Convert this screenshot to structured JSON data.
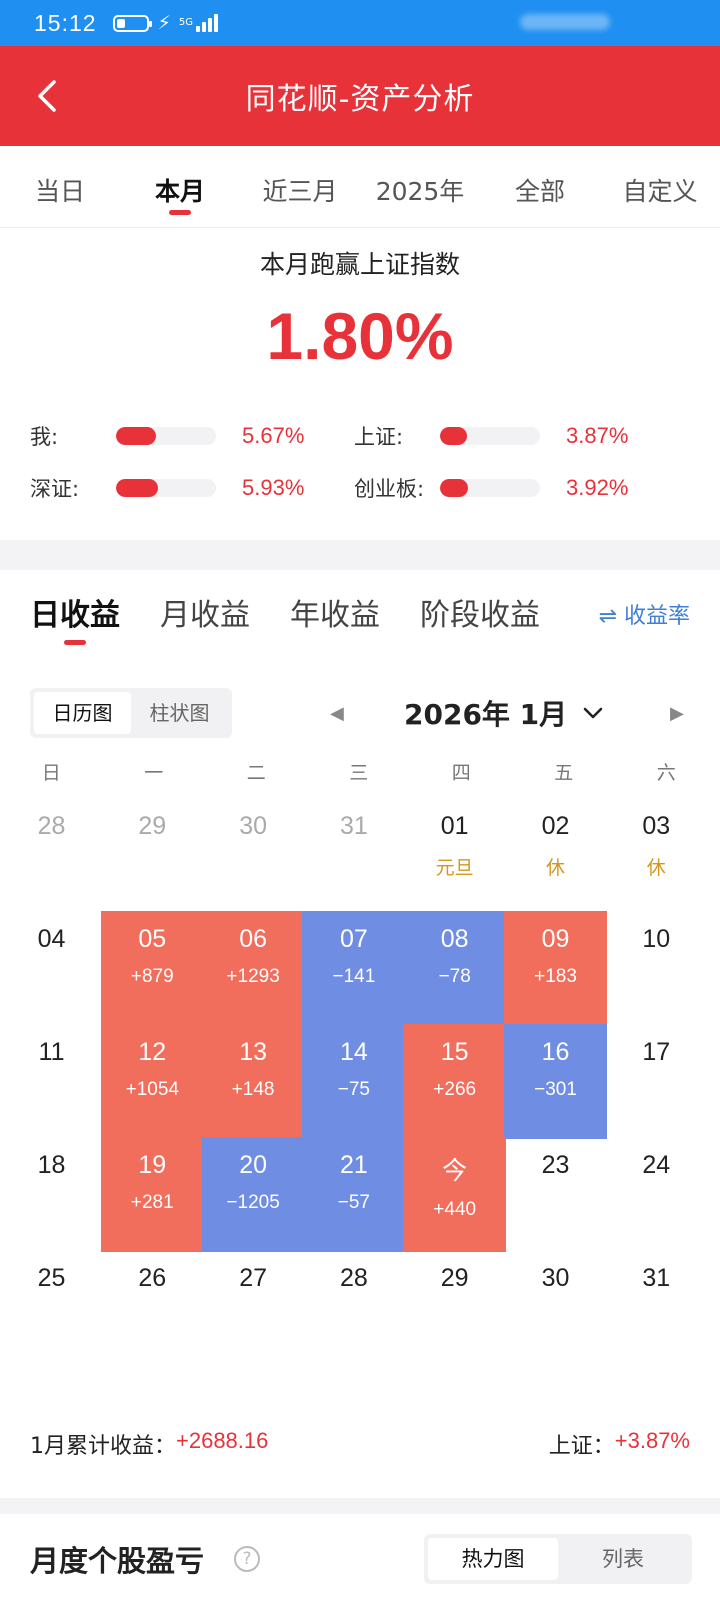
{
  "status": {
    "time": "15:12",
    "network": "5G"
  },
  "header": {
    "title": "同花顺-资产分析"
  },
  "period_tabs": [
    {
      "label": "当日"
    },
    {
      "label": "本月"
    },
    {
      "label": "近三月"
    },
    {
      "label": "2025年"
    },
    {
      "label": "全部"
    },
    {
      "label": "自定义"
    }
  ],
  "summary": {
    "title": "本月跑赢上证指数",
    "value": "1.80%",
    "comparisons": [
      {
        "label": "我:",
        "value": "5.67%",
        "fill": 0.4
      },
      {
        "label": "上证:",
        "value": "3.87%",
        "fill": 0.27
      },
      {
        "label": "深证:",
        "value": "5.93%",
        "fill": 0.42
      },
      {
        "label": "创业板:",
        "value": "3.92%",
        "fill": 0.28
      }
    ]
  },
  "income_tabs": [
    {
      "label": "日收益"
    },
    {
      "label": "月收益"
    },
    {
      "label": "年收益"
    },
    {
      "label": "阶段收益"
    }
  ],
  "ratio_toggle": "⇌ 收益率",
  "view_toggle": {
    "calendar": "日历图",
    "bar": "柱状图"
  },
  "month_label": "2026年 1月",
  "weekdays": [
    "日",
    "一",
    "二",
    "三",
    "四",
    "五",
    "六"
  ],
  "calendar": [
    {
      "day": "28",
      "other": true
    },
    {
      "day": "29",
      "other": true
    },
    {
      "day": "30",
      "other": true
    },
    {
      "day": "31",
      "other": true
    },
    {
      "day": "01",
      "note": "元旦",
      "kind": "hol"
    },
    {
      "day": "02",
      "note": "休",
      "kind": "hol"
    },
    {
      "day": "03",
      "note": "休",
      "kind": "hol"
    },
    {
      "day": "04"
    },
    {
      "day": "05",
      "note": "+879",
      "kind": "up"
    },
    {
      "day": "06",
      "note": "+1293",
      "kind": "up"
    },
    {
      "day": "07",
      "note": "−141",
      "kind": "down"
    },
    {
      "day": "08",
      "note": "−78",
      "kind": "down"
    },
    {
      "day": "09",
      "note": "+183",
      "kind": "up"
    },
    {
      "day": "10"
    },
    {
      "day": "11"
    },
    {
      "day": "12",
      "note": "+1054",
      "kind": "up"
    },
    {
      "day": "13",
      "note": "+148",
      "kind": "up"
    },
    {
      "day": "14",
      "note": "−75",
      "kind": "down"
    },
    {
      "day": "15",
      "note": "+266",
      "kind": "up"
    },
    {
      "day": "16",
      "note": "−301",
      "kind": "down"
    },
    {
      "day": "17"
    },
    {
      "day": "18"
    },
    {
      "day": "19",
      "note": "+281",
      "kind": "up"
    },
    {
      "day": "20",
      "note": "−1205",
      "kind": "down"
    },
    {
      "day": "21",
      "note": "−57",
      "kind": "down"
    },
    {
      "day": "今",
      "note": "+440",
      "kind": "up"
    },
    {
      "day": "23"
    },
    {
      "day": "24"
    },
    {
      "day": "25"
    },
    {
      "day": "26"
    },
    {
      "day": "27"
    },
    {
      "day": "28"
    },
    {
      "day": "29"
    },
    {
      "day": "30"
    },
    {
      "day": "31"
    }
  ],
  "footer": {
    "cum_label": "1月累计收益：",
    "cum_value": "+2688.16",
    "index_label": "上证：",
    "index_value": "+3.87%"
  },
  "bottom": {
    "title": "月度个股盈亏",
    "help": "?",
    "heatmap": "热力图",
    "list": "列表"
  },
  "colors": {
    "brand": "#e8323a",
    "gain": "#f26e5c",
    "loss": "#6f8ee3",
    "holiday": "#d3961f",
    "statusbar": "#1f8ff1"
  }
}
